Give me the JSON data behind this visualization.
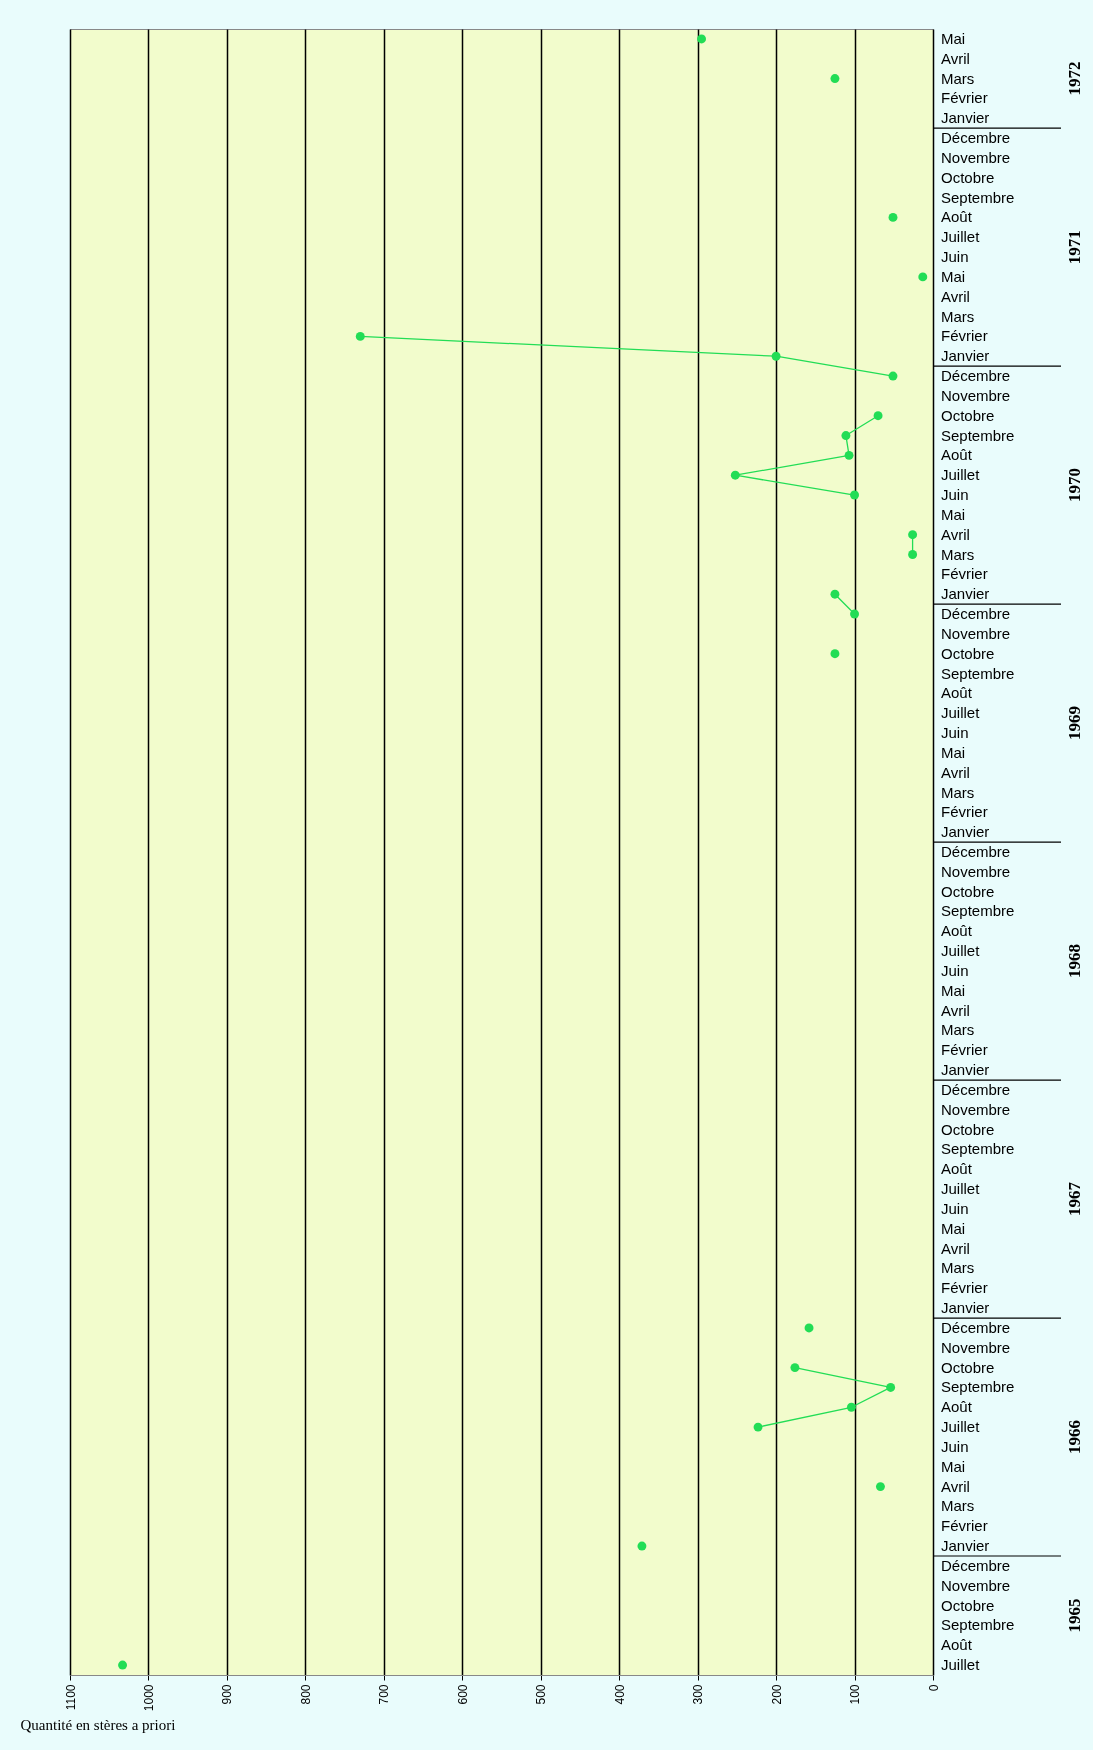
{
  "chart_data": {
    "type": "line",
    "orientation": "horizontal",
    "xlabel": "Quantité en stères a priori",
    "xlim": [
      1100,
      0
    ],
    "xticks": [
      1100,
      1000,
      900,
      800,
      700,
      600,
      500,
      400,
      300,
      200,
      100,
      0
    ],
    "grid": "x",
    "marker": "circle",
    "line_style": "solid",
    "categories": [
      "Mai",
      "Avril",
      "Mars",
      "Février",
      "Janvier",
      "Décembre",
      "Novembre",
      "Octobre",
      "Septembre",
      "Août",
      "Juillet",
      "Juin",
      "Mai",
      "Avril",
      "Mars",
      "Février",
      "Janvier",
      "Décembre",
      "Novembre",
      "Octobre",
      "Septembre",
      "Août",
      "Juillet",
      "Juin",
      "Mai",
      "Avril",
      "Mars",
      "Février",
      "Janvier",
      "Décembre",
      "Novembre",
      "Octobre",
      "Septembre",
      "Août",
      "Juillet",
      "Juin",
      "Mai",
      "Avril",
      "Mars",
      "Février",
      "Janvier",
      "Décembre",
      "Novembre",
      "Octobre",
      "Septembre",
      "Août",
      "Juillet",
      "Juin",
      "Mai",
      "Avril",
      "Mars",
      "Février",
      "Janvier",
      "Décembre",
      "Novembre",
      "Octobre",
      "Septembre",
      "Août",
      "Juillet",
      "Juin",
      "Mai",
      "Avril",
      "Mars",
      "Février",
      "Janvier",
      "Décembre",
      "Novembre",
      "Octobre",
      "Septembre",
      "Août",
      "Juillet",
      "Juin",
      "Mai",
      "Avril",
      "Mars",
      "Février",
      "Janvier",
      "Décembre",
      "Novembre",
      "Octobre",
      "Septembre",
      "Août",
      "Juillet"
    ],
    "annotations": [
      "1972",
      "1971",
      "1970",
      "1969",
      "1968",
      "1967",
      "1966",
      "1965"
    ],
    "series": [
      {
        "color": "#22dd55",
        "values": [
          295,
          null,
          125,
          null,
          null,
          null,
          null,
          null,
          null,
          51,
          null,
          null,
          13,
          null,
          null,
          730,
          200,
          51,
          null,
          70,
          111,
          107,
          252,
          100,
          null,
          26,
          26,
          null,
          125,
          100,
          null,
          125,
          null,
          null,
          null,
          null,
          null,
          null,
          null,
          null,
          null,
          null,
          null,
          null,
          null,
          null,
          null,
          null,
          null,
          null,
          null,
          null,
          null,
          null,
          null,
          null,
          null,
          null,
          null,
          null,
          null,
          null,
          null,
          null,
          null,
          158,
          null,
          176,
          54,
          104,
          223,
          null,
          null,
          67,
          null,
          null,
          371,
          null,
          null,
          null,
          null,
          null,
          1033
        ]
      }
    ]
  }
}
